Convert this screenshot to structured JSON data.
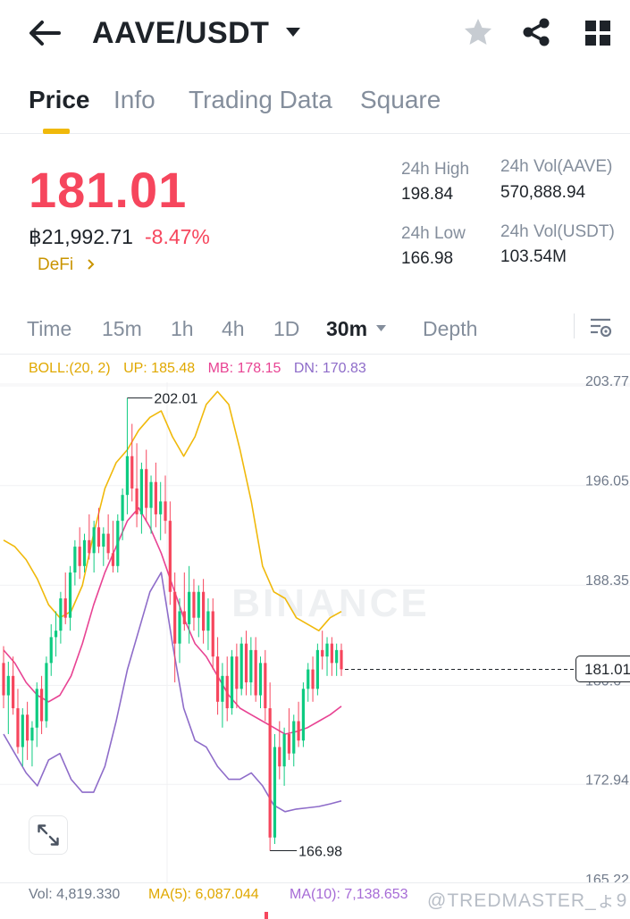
{
  "header": {
    "pair": "AAVE/USDT",
    "icons": [
      "back-arrow-icon",
      "caret-down-icon",
      "star-icon",
      "share-icon",
      "grid-icon"
    ]
  },
  "tabs": [
    {
      "label": "Price",
      "active": true
    },
    {
      "label": "Info",
      "active": false
    },
    {
      "label": "Trading Data",
      "active": false
    },
    {
      "label": "Square",
      "active": false
    }
  ],
  "ticker": {
    "last_price": "181.01",
    "fiat_value": "฿21,992.71",
    "change_pct": "-8.47%",
    "tag": "DeFi",
    "high_label": "24h High",
    "high_value": "198.84",
    "low_label": "24h Low",
    "low_value": "166.98",
    "vol_base_label": "24h Vol(AAVE)",
    "vol_base_value": "570,888.94",
    "vol_quote_label": "24h Vol(USDT)",
    "vol_quote_value": "103.54M"
  },
  "intervals": {
    "items": [
      "Time",
      "15m",
      "1h",
      "4h",
      "1D",
      "30m",
      "Depth"
    ],
    "active": "30m"
  },
  "indicators": {
    "boll": "BOLL:(20, 2)",
    "up": "UP: 185.48",
    "mb": "MB: 178.15",
    "dn": "DN: 170.83"
  },
  "chart_data": {
    "type": "candlestick",
    "symbol": "AAVE/USDT",
    "interval": "30m",
    "y_ticks": [
      "203.77",
      "196.05",
      "188.35",
      "180.6",
      "172.94",
      "165.22"
    ],
    "ylim": [
      165.22,
      203.77
    ],
    "last_price_label": "181.01",
    "max_label": "202.01",
    "min_label": "166.98",
    "candles": [
      [
        181.5,
        182.8,
        178.0,
        179.0
      ],
      [
        179.0,
        181.6,
        176.0,
        180.5
      ],
      [
        180.5,
        182.0,
        177.5,
        178.0
      ],
      [
        178.0,
        179.5,
        174.5,
        175.0
      ],
      [
        175.0,
        178.0,
        173.5,
        177.5
      ],
      [
        177.5,
        178.5,
        174.0,
        175.5
      ],
      [
        175.5,
        177.0,
        173.5,
        176.5
      ],
      [
        176.5,
        180.0,
        175.0,
        179.5
      ],
      [
        179.5,
        180.5,
        176.0,
        177.0
      ],
      [
        177.0,
        182.0,
        176.5,
        181.5
      ],
      [
        181.5,
        184.5,
        180.5,
        183.5
      ],
      [
        183.5,
        185.5,
        182.0,
        184.0
      ],
      [
        184.0,
        187.0,
        183.0,
        186.5
      ],
      [
        186.5,
        188.5,
        184.5,
        185.0
      ],
      [
        185.0,
        189.0,
        184.0,
        188.5
      ],
      [
        188.5,
        191.0,
        187.5,
        190.5
      ],
      [
        190.5,
        192.0,
        188.0,
        189.0
      ],
      [
        189.0,
        191.5,
        188.5,
        191.0
      ],
      [
        191.0,
        193.0,
        189.5,
        190.0
      ],
      [
        190.0,
        192.5,
        188.5,
        192.0
      ],
      [
        192.0,
        193.5,
        190.0,
        190.5
      ],
      [
        190.5,
        192.0,
        189.0,
        191.5
      ],
      [
        191.5,
        193.0,
        189.5,
        190.0
      ],
      [
        190.0,
        192.5,
        188.5,
        189.0
      ],
      [
        189.0,
        193.0,
        188.5,
        192.5
      ],
      [
        192.5,
        195.0,
        191.0,
        194.5
      ],
      [
        194.5,
        202.0,
        193.0,
        197.5
      ],
      [
        197.5,
        200.0,
        194.0,
        195.0
      ],
      [
        195.0,
        198.5,
        192.0,
        193.0
      ],
      [
        193.0,
        197.0,
        191.5,
        196.5
      ],
      [
        196.5,
        198.0,
        192.5,
        193.5
      ],
      [
        193.5,
        196.0,
        191.5,
        195.5
      ],
      [
        195.5,
        197.0,
        192.0,
        193.0
      ],
      [
        193.0,
        195.5,
        191.0,
        194.0
      ],
      [
        194.0,
        196.0,
        191.5,
        192.5
      ],
      [
        192.5,
        194.0,
        186.0,
        187.0
      ],
      [
        187.0,
        188.5,
        180.0,
        183.0
      ],
      [
        183.0,
        186.5,
        181.5,
        185.5
      ],
      [
        185.5,
        188.5,
        184.0,
        184.5
      ],
      [
        184.5,
        189.0,
        183.0,
        187.0
      ],
      [
        187.0,
        188.0,
        184.0,
        185.0
      ],
      [
        185.0,
        187.5,
        183.5,
        187.0
      ],
      [
        187.0,
        188.0,
        183.0,
        184.0
      ],
      [
        184.0,
        186.5,
        182.5,
        185.5
      ],
      [
        185.5,
        186.5,
        181.0,
        182.0
      ],
      [
        182.0,
        183.5,
        177.5,
        178.5
      ],
      [
        178.5,
        181.5,
        176.5,
        180.5
      ],
      [
        180.5,
        182.0,
        177.0,
        178.0
      ],
      [
        178.0,
        182.5,
        177.5,
        182.0
      ],
      [
        182.0,
        183.0,
        178.0,
        179.5
      ],
      [
        179.5,
        183.5,
        179.0,
        183.0
      ],
      [
        183.0,
        184.0,
        179.0,
        180.0
      ],
      [
        180.0,
        183.5,
        179.0,
        182.5
      ],
      [
        182.5,
        183.5,
        178.5,
        179.0
      ],
      [
        179.0,
        182.0,
        178.0,
        181.5
      ],
      [
        181.5,
        182.5,
        177.0,
        178.0
      ],
      [
        178.0,
        180.0,
        166.98,
        168.0
      ],
      [
        168.0,
        176.0,
        167.5,
        175.0
      ],
      [
        175.0,
        177.0,
        172.5,
        173.5
      ],
      [
        173.5,
        176.5,
        172.0,
        176.0
      ],
      [
        176.0,
        178.0,
        174.0,
        174.5
      ],
      [
        174.5,
        177.5,
        173.5,
        177.0
      ],
      [
        177.0,
        178.5,
        175.0,
        175.5
      ],
      [
        175.5,
        180.0,
        175.0,
        179.5
      ],
      [
        179.5,
        181.5,
        178.5,
        181.0
      ],
      [
        181.0,
        182.0,
        178.5,
        179.5
      ],
      [
        179.5,
        183.0,
        179.0,
        182.5
      ],
      [
        182.5,
        184.0,
        181.0,
        182.0
      ],
      [
        182.0,
        183.5,
        180.5,
        183.0
      ],
      [
        183.0,
        183.5,
        180.5,
        181.5
      ],
      [
        181.5,
        183.0,
        180.5,
        182.5
      ],
      [
        182.5,
        183.0,
        180.5,
        181.01
      ]
    ],
    "boll_up": [
      191.0,
      190.5,
      189.5,
      188.0,
      186.0,
      185.0,
      185.5,
      187.5,
      191.5,
      195.0,
      197.0,
      198.0,
      199.5,
      200.5,
      201.0,
      199.0,
      197.5,
      199.0,
      201.5,
      202.5,
      201.5,
      198.0,
      194.0,
      189.0,
      187.0,
      186.5,
      185.0,
      184.5,
      184.0,
      185.0,
      185.48
    ],
    "boll_mid": [
      182.5,
      181.5,
      180.0,
      179.0,
      178.5,
      179.0,
      180.5,
      183.0,
      186.0,
      188.5,
      190.5,
      192.5,
      193.5,
      192.0,
      190.0,
      187.5,
      185.0,
      183.0,
      182.0,
      180.5,
      179.0,
      178.0,
      177.5,
      177.0,
      176.5,
      176.0,
      176.2,
      176.5,
      177.0,
      177.5,
      178.15
    ],
    "boll_dn": [
      176.0,
      174.5,
      173.0,
      172.0,
      174.0,
      174.5,
      172.5,
      171.5,
      171.5,
      173.5,
      177.0,
      181.0,
      184.0,
      187.0,
      188.5,
      183.0,
      178.0,
      175.5,
      175.0,
      173.5,
      172.5,
      172.5,
      173.0,
      172.0,
      170.5,
      170.0,
      170.2,
      170.3,
      170.4,
      170.6,
      170.83
    ]
  },
  "volume": {
    "vol": "Vol: 4,819.330",
    "ma5": "MA(5): 6,087.044",
    "ma10": "MA(10): 7,138.653"
  },
  "watermark": "BINANCE",
  "watermark_user": "@TREDMASTER_ょ9",
  "colors": {
    "up": "#0ecb81",
    "down": "#f6465d",
    "boll_up": "#f0b90b",
    "boll_mid": "#e84393",
    "boll_dn": "#8e6cc9",
    "accent": "#f0b90b"
  }
}
